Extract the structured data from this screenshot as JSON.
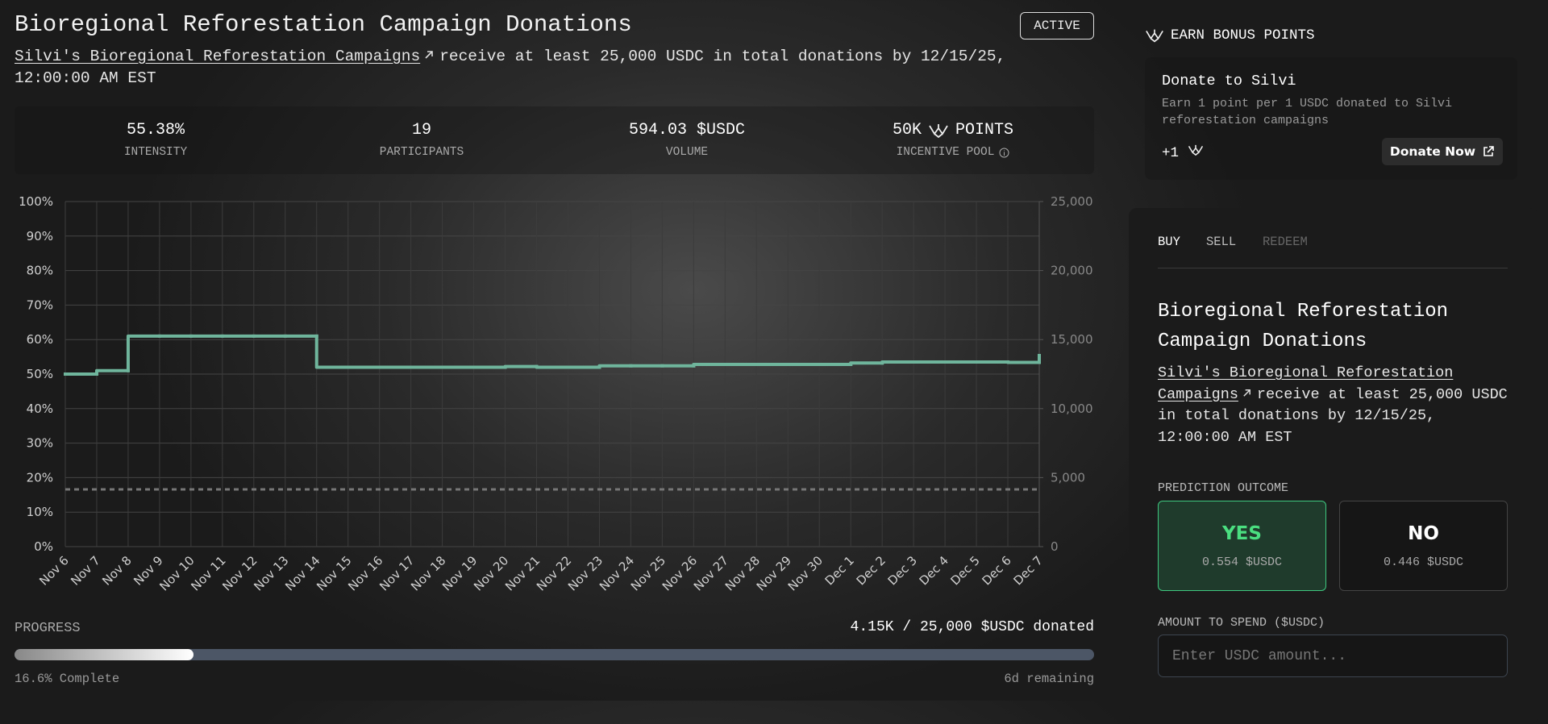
{
  "header": {
    "title": "Bioregional Reforestation Campaign Donations",
    "status": "ACTIVE",
    "link": "Silvi's Bioregional Reforestation Campaigns",
    "description": "receive at least 25,000 USDC in total donations by 12/15/25, 12:00:00 AM EST"
  },
  "stats": [
    {
      "value": "55.38%",
      "label": "INTENSITY"
    },
    {
      "value": "19",
      "label": "PARTICIPANTS"
    },
    {
      "value": "594.03 $USDC",
      "label": "VOLUME"
    },
    {
      "value": "50K",
      "unit": "POINTS",
      "label": "INCENTIVE POOL"
    }
  ],
  "chart_data": {
    "type": "line",
    "step": "after",
    "grid": true,
    "categories": [
      "Nov 6",
      "Nov 7",
      "Nov 8",
      "Nov 9",
      "Nov 10",
      "Nov 11",
      "Nov 12",
      "Nov 13",
      "Nov 14",
      "Nov 15",
      "Nov 16",
      "Nov 17",
      "Nov 18",
      "Nov 19",
      "Nov 20",
      "Nov 21",
      "Nov 22",
      "Nov 23",
      "Nov 24",
      "Nov 25",
      "Nov 26",
      "Nov 27",
      "Nov 28",
      "Nov 29",
      "Nov 30",
      "Dec 1",
      "Dec 2",
      "Dec 3",
      "Dec 4",
      "Dec 5",
      "Dec 6",
      "Dec 7"
    ],
    "series": [
      {
        "color": "#6fb59c",
        "values": [
          50,
          51,
          61,
          61,
          61,
          61,
          61,
          61,
          52,
          52,
          52,
          52,
          52,
          52,
          52.2,
          52,
          52,
          52.4,
          52.4,
          52.4,
          52.8,
          52.8,
          52.8,
          52.8,
          52.8,
          53.2,
          53.5,
          53.5,
          53.5,
          53.5,
          53.4,
          55.38
        ]
      }
    ],
    "threshold": {
      "value": 4150,
      "axis": "y2",
      "color": "#777777",
      "style": "dashed"
    },
    "ylim": [
      0,
      100
    ],
    "yticks": [
      {
        "value": 0,
        "label": "0%"
      },
      {
        "value": 10,
        "label": "10%"
      },
      {
        "value": 20,
        "label": "20%"
      },
      {
        "value": 30,
        "label": "30%"
      },
      {
        "value": 40,
        "label": "40%"
      },
      {
        "value": 50,
        "label": "50%"
      },
      {
        "value": 60,
        "label": "60%"
      },
      {
        "value": 70,
        "label": "70%"
      },
      {
        "value": 80,
        "label": "80%"
      },
      {
        "value": 90,
        "label": "90%"
      },
      {
        "value": 100,
        "label": "100%"
      }
    ],
    "y2lim": [
      0,
      25000
    ],
    "y2ticks": [
      0,
      {
        "value": 5000,
        "label": "5,000"
      },
      {
        "value": 10000,
        "label": "10,000"
      },
      {
        "value": 15000,
        "label": "15,000"
      },
      {
        "value": 20000,
        "label": "20,000"
      },
      {
        "value": 25000,
        "label": "25,000"
      }
    ]
  },
  "progress": {
    "label": "PROGRESS",
    "summary": "4.15K / 25,000 $USDC donated",
    "value": 16.6,
    "complete": "16.6% Complete",
    "remaining": "6d remaining"
  },
  "bonus": {
    "heading": "EARN BONUS POINTS",
    "card_title": "Donate to Silvi",
    "card_text": "Earn 1 point per 1 USDC donated to Silvi reforestation campaigns",
    "points": "+1",
    "button": "Donate Now"
  },
  "trade": {
    "tabs": [
      "BUY",
      "SELL",
      "REDEEM"
    ],
    "title": "Bioregional Reforestation Campaign Donations",
    "link": "Silvi's Bioregional Reforestation Campaigns",
    "description": "receive at least 25,000 USDC in total donations by 12/15/25, 12:00:00 AM EST",
    "outcome_label": "PREDICTION OUTCOME",
    "options": [
      {
        "label": "YES",
        "price": "0.554 $USDC"
      },
      {
        "label": "NO",
        "price": "0.446 $USDC"
      }
    ],
    "amount_label": "AMOUNT TO SPEND ($USDC)",
    "amount_placeholder": "Enter USDC amount..."
  }
}
